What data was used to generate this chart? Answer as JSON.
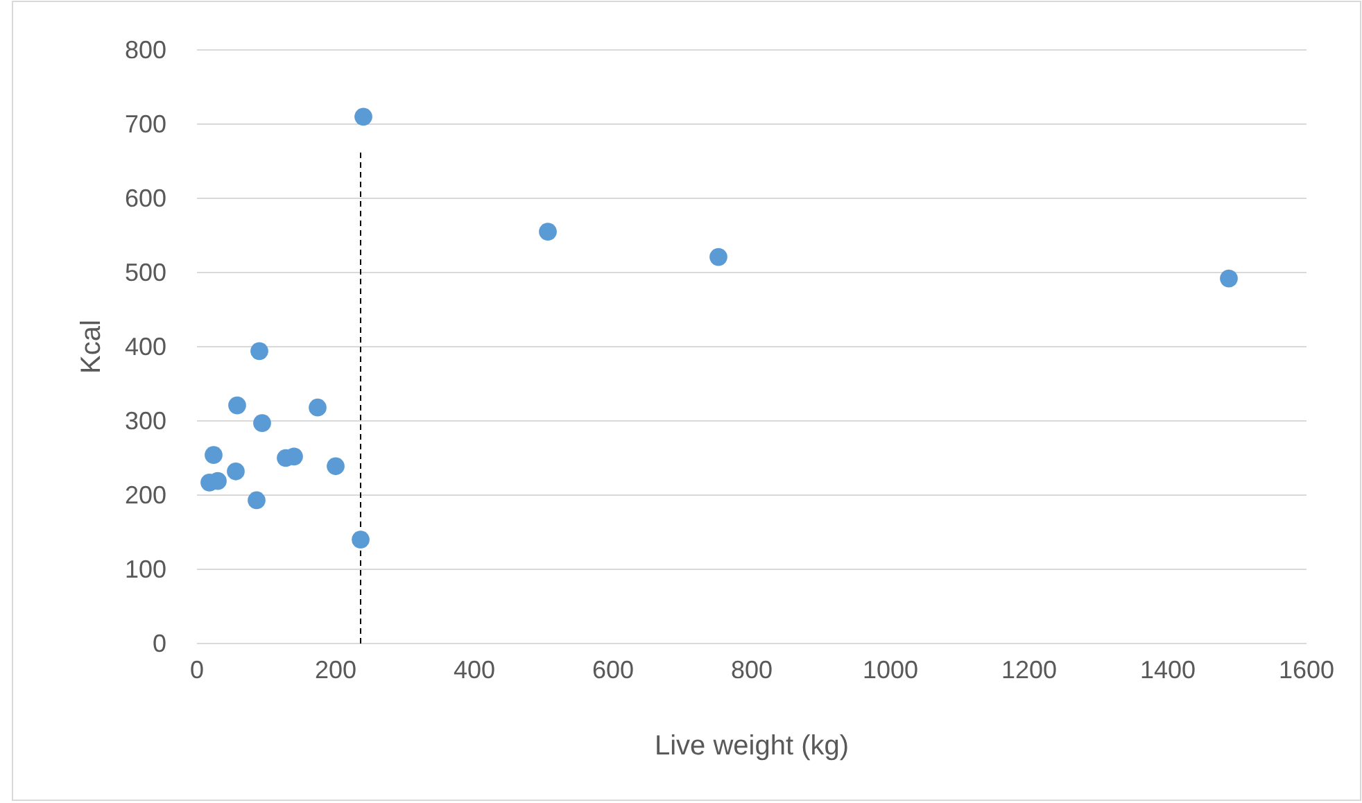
{
  "chart_data": {
    "type": "scatter",
    "xlabel": "Live weight (kg)",
    "ylabel": "Kcal",
    "x": [
      240,
      506,
      752,
      1488,
      90,
      58,
      174,
      94,
      24,
      128,
      140,
      56,
      200,
      18,
      30,
      86,
      236
    ],
    "values": [
      710,
      555,
      521,
      492,
      394,
      321,
      318,
      297,
      254,
      250,
      252,
      232,
      239,
      217,
      219,
      193,
      140
    ],
    "color": "#5b9bd5",
    "marker": "circle",
    "grid": "y",
    "xlim": [
      0,
      1600
    ],
    "xticks": [
      0,
      200,
      400,
      600,
      800,
      1000,
      1200,
      1400,
      1600
    ],
    "ylim": [
      0,
      800
    ],
    "yticks": [
      0,
      100,
      200,
      300,
      400,
      500,
      600,
      700,
      800
    ],
    "ref_lines": [
      {
        "axis": "x",
        "value": 236,
        "color": "#000000",
        "line_style": "dashed"
      }
    ]
  }
}
